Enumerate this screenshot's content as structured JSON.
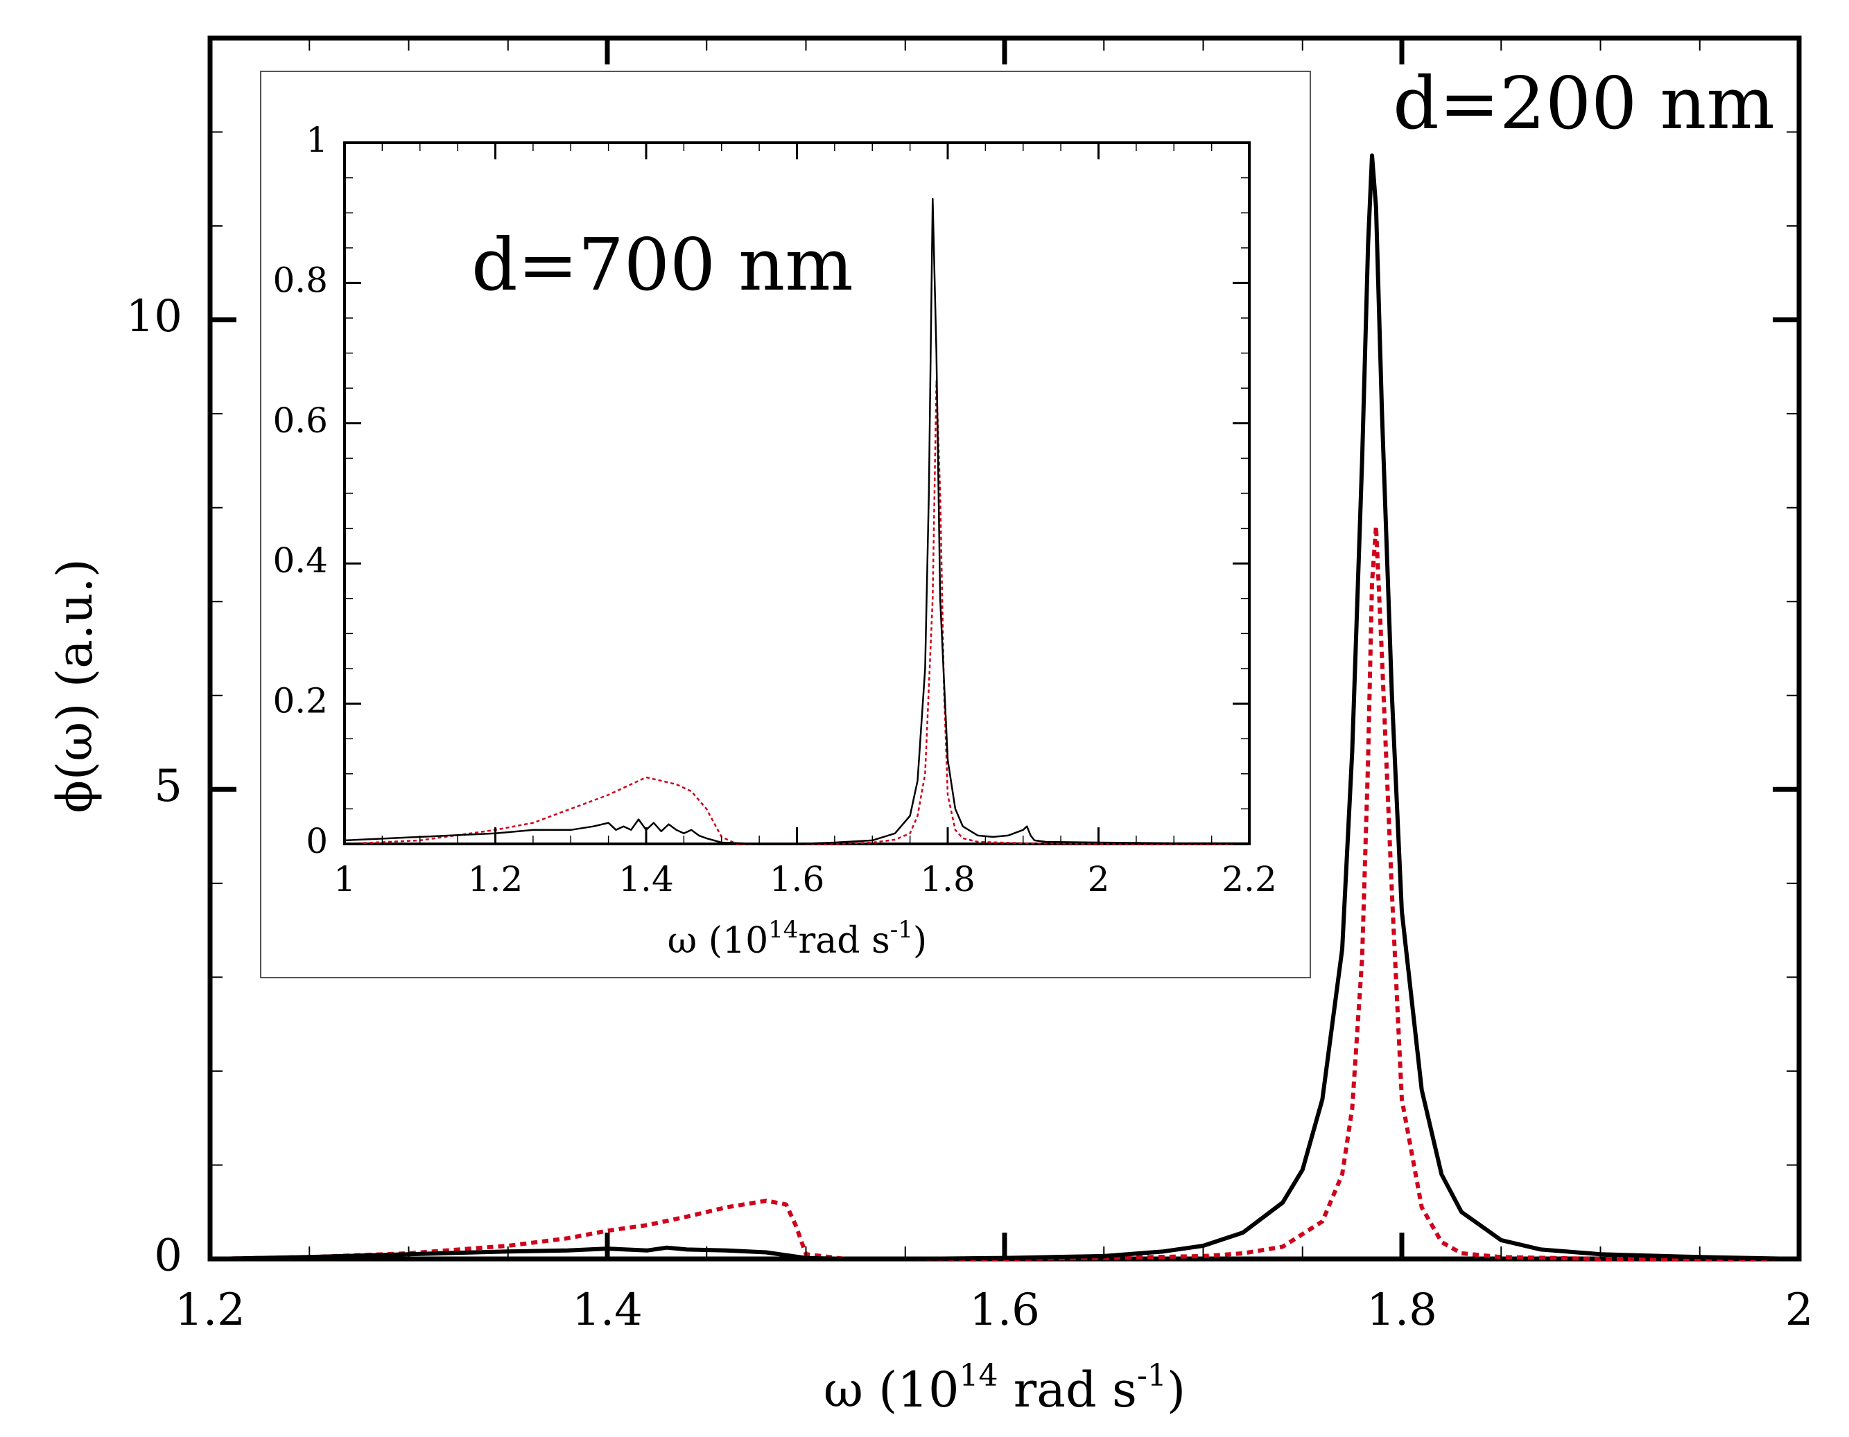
{
  "chart_data": [
    {
      "id": "main",
      "type": "line",
      "annotation": "d=200 nm",
      "xlabel": {
        "prefix": "ω (10",
        "exp": "14",
        "mid": " rad s",
        "exp2": "-1",
        "suffix": ")"
      },
      "ylabel": "ϕ(ω) (a.u.)",
      "xlim": [
        1.2,
        2.0
      ],
      "ylim": [
        0,
        13
      ],
      "xticks": [
        1.2,
        1.4,
        1.6,
        1.8,
        2.0
      ],
      "xtick_labels": [
        "1.2",
        "1.4",
        "1.6",
        "1.8",
        "2"
      ],
      "yticks": [
        0,
        5,
        10
      ],
      "ytick_labels": [
        "0",
        "5",
        "10"
      ],
      "series": [
        {
          "name": "black-solid",
          "color": "#000000",
          "style": "solid",
          "x": [
            1.2,
            1.25,
            1.3,
            1.35,
            1.38,
            1.4,
            1.42,
            1.43,
            1.44,
            1.46,
            1.48,
            1.49,
            1.5,
            1.52,
            1.55,
            1.6,
            1.65,
            1.68,
            1.7,
            1.72,
            1.74,
            1.75,
            1.76,
            1.77,
            1.775,
            1.78,
            1.783,
            1.785,
            1.787,
            1.79,
            1.795,
            1.8,
            1.81,
            1.82,
            1.83,
            1.85,
            1.87,
            1.9,
            1.95,
            2.0
          ],
          "y": [
            0.0,
            0.02,
            0.05,
            0.08,
            0.09,
            0.11,
            0.09,
            0.12,
            0.1,
            0.09,
            0.07,
            0.04,
            0.01,
            0.0,
            0.0,
            0.01,
            0.03,
            0.08,
            0.14,
            0.28,
            0.6,
            0.95,
            1.7,
            3.3,
            5.4,
            8.5,
            10.8,
            11.75,
            11.2,
            9.0,
            6.0,
            3.7,
            1.8,
            0.9,
            0.5,
            0.2,
            0.1,
            0.05,
            0.02,
            0.0
          ]
        },
        {
          "name": "red-dotted",
          "color": "#d0021b",
          "style": "dotted",
          "x": [
            1.2,
            1.25,
            1.3,
            1.35,
            1.38,
            1.4,
            1.42,
            1.44,
            1.46,
            1.48,
            1.49,
            1.495,
            1.5,
            1.52,
            1.55,
            1.6,
            1.65,
            1.7,
            1.72,
            1.74,
            1.76,
            1.77,
            1.775,
            1.78,
            1.783,
            1.785,
            1.787,
            1.79,
            1.795,
            1.8,
            1.81,
            1.82,
            1.83,
            1.85,
            1.9,
            2.0
          ],
          "y": [
            0.0,
            0.02,
            0.06,
            0.14,
            0.22,
            0.3,
            0.36,
            0.45,
            0.55,
            0.62,
            0.58,
            0.35,
            0.05,
            0.0,
            0.0,
            0.0,
            0.01,
            0.03,
            0.06,
            0.13,
            0.4,
            0.9,
            1.6,
            3.2,
            5.3,
            7.2,
            7.8,
            6.4,
            3.9,
            1.7,
            0.55,
            0.18,
            0.06,
            0.02,
            0.0,
            0.0
          ]
        }
      ]
    },
    {
      "id": "inset",
      "type": "line",
      "annotation": "d=700 nm",
      "xlabel": {
        "prefix": "ω (10",
        "exp": "14",
        "mid": "rad s",
        "exp2": "-1",
        "suffix": ")"
      },
      "xlim": [
        1.0,
        2.2
      ],
      "ylim": [
        0,
        1.0
      ],
      "xticks": [
        1.0,
        1.2,
        1.4,
        1.6,
        1.8,
        2.0,
        2.2
      ],
      "xtick_labels": [
        "1",
        "1.2",
        "1.4",
        "1.6",
        "1.8",
        "2",
        "2.2"
      ],
      "yticks": [
        0,
        0.2,
        0.4,
        0.6,
        0.8,
        1.0
      ],
      "ytick_labels": [
        "0",
        "0.2",
        "0.4",
        "0.6",
        "0.8",
        "1"
      ],
      "series": [
        {
          "name": "black-solid",
          "color": "#000000",
          "style": "solid",
          "x": [
            1.0,
            1.1,
            1.2,
            1.25,
            1.3,
            1.33,
            1.35,
            1.36,
            1.37,
            1.38,
            1.39,
            1.4,
            1.41,
            1.42,
            1.43,
            1.44,
            1.45,
            1.46,
            1.47,
            1.48,
            1.5,
            1.55,
            1.6,
            1.65,
            1.7,
            1.73,
            1.75,
            1.76,
            1.77,
            1.775,
            1.78,
            1.785,
            1.79,
            1.8,
            1.81,
            1.82,
            1.84,
            1.86,
            1.88,
            1.9,
            1.905,
            1.91,
            1.915,
            1.93,
            2.0,
            2.1,
            2.2
          ],
          "y": [
            0.005,
            0.01,
            0.015,
            0.02,
            0.02,
            0.025,
            0.03,
            0.02,
            0.025,
            0.02,
            0.035,
            0.02,
            0.03,
            0.018,
            0.028,
            0.02,
            0.015,
            0.02,
            0.012,
            0.008,
            0.002,
            0.0,
            0.0,
            0.002,
            0.005,
            0.015,
            0.04,
            0.09,
            0.25,
            0.5,
            0.92,
            0.7,
            0.35,
            0.12,
            0.05,
            0.025,
            0.012,
            0.01,
            0.012,
            0.02,
            0.025,
            0.012,
            0.005,
            0.003,
            0.002,
            0.001,
            0.001
          ]
        },
        {
          "name": "red-dotted",
          "color": "#d0021b",
          "style": "dotted",
          "x": [
            1.0,
            1.1,
            1.2,
            1.25,
            1.3,
            1.35,
            1.38,
            1.4,
            1.42,
            1.44,
            1.46,
            1.48,
            1.5,
            1.52,
            1.55,
            1.6,
            1.65,
            1.7,
            1.73,
            1.75,
            1.76,
            1.77,
            1.78,
            1.785,
            1.79,
            1.795,
            1.8,
            1.81,
            1.82,
            1.84,
            1.9,
            2.0,
            2.2
          ],
          "y": [
            0.0,
            0.005,
            0.02,
            0.03,
            0.05,
            0.07,
            0.085,
            0.095,
            0.09,
            0.085,
            0.075,
            0.05,
            0.01,
            0.0,
            0.0,
            0.0,
            0.0,
            0.002,
            0.006,
            0.015,
            0.04,
            0.1,
            0.35,
            0.66,
            0.5,
            0.22,
            0.07,
            0.02,
            0.008,
            0.003,
            0.001,
            0.0,
            0.0
          ]
        }
      ]
    }
  ]
}
